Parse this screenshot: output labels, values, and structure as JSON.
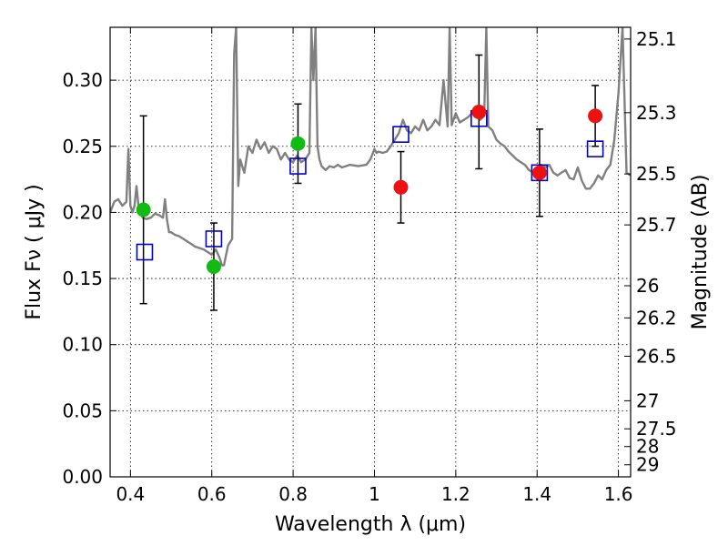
{
  "chart_data": {
    "type": "scatter",
    "xlabel": "Wavelength  λ (μm)",
    "ylabel": "Flux  Fν  ( μJy )",
    "y2label": "Magnitude (AB)",
    "xlim": [
      0.35,
      1.63
    ],
    "ylim": [
      0.0,
      0.34
    ],
    "grid": true,
    "x_ticks": [
      {
        "value": 0.4,
        "label": "0.4"
      },
      {
        "value": 0.6,
        "label": "0.6"
      },
      {
        "value": 0.8,
        "label": "0.8"
      },
      {
        "value": 1.0,
        "label": "1"
      },
      {
        "value": 1.2,
        "label": "1.2"
      },
      {
        "value": 1.4,
        "label": "1.4"
      },
      {
        "value": 1.6,
        "label": "1.6"
      }
    ],
    "y_ticks": [
      {
        "value": 0.0,
        "label": "0.00"
      },
      {
        "value": 0.05,
        "label": "0.05"
      },
      {
        "value": 0.1,
        "label": "0.10"
      },
      {
        "value": 0.15,
        "label": "0.15"
      },
      {
        "value": 0.2,
        "label": "0.20"
      },
      {
        "value": 0.25,
        "label": "0.25"
      },
      {
        "value": 0.3,
        "label": "0.30"
      }
    ],
    "y2_ticks": [
      {
        "value": 25.1,
        "label": "25.1"
      },
      {
        "value": 25.3,
        "label": "25.3"
      },
      {
        "value": 25.5,
        "label": "25.5"
      },
      {
        "value": 25.7,
        "label": "25.7"
      },
      {
        "value": 26.0,
        "label": "26"
      },
      {
        "value": 26.2,
        "label": "26.2"
      },
      {
        "value": 26.5,
        "label": "26.5"
      },
      {
        "value": 27.0,
        "label": "27"
      },
      {
        "value": 27.5,
        "label": "27.5"
      },
      {
        "value": 28.0,
        "label": "28"
      },
      {
        "value": 29.0,
        "label": "29"
      }
    ],
    "template_spectrum": {
      "color": "#808080",
      "x": [
        0.35,
        0.36,
        0.37,
        0.38,
        0.39,
        0.395,
        0.4,
        0.405,
        0.41,
        0.415,
        0.42,
        0.43,
        0.44,
        0.45,
        0.46,
        0.47,
        0.48,
        0.485,
        0.49,
        0.495,
        0.5,
        0.51,
        0.52,
        0.53,
        0.54,
        0.55,
        0.56,
        0.57,
        0.58,
        0.59,
        0.6,
        0.61,
        0.62,
        0.625,
        0.63,
        0.64,
        0.65,
        0.655,
        0.66,
        0.665,
        0.67,
        0.675,
        0.68,
        0.69,
        0.7,
        0.71,
        0.72,
        0.73,
        0.74,
        0.75,
        0.76,
        0.77,
        0.78,
        0.79,
        0.8,
        0.81,
        0.82,
        0.83,
        0.84,
        0.845,
        0.85,
        0.855,
        0.86,
        0.865,
        0.87,
        0.88,
        0.89,
        0.9,
        0.91,
        0.92,
        0.94,
        0.96,
        0.98,
        0.99,
        1.0,
        1.005,
        1.01,
        1.02,
        1.03,
        1.04,
        1.05,
        1.06,
        1.07,
        1.08,
        1.09,
        1.1,
        1.11,
        1.12,
        1.13,
        1.14,
        1.15,
        1.16,
        1.17,
        1.18,
        1.185,
        1.19,
        1.2,
        1.21,
        1.22,
        1.23,
        1.24,
        1.25,
        1.26,
        1.27,
        1.275,
        1.28,
        1.29,
        1.3,
        1.31,
        1.32,
        1.33,
        1.34,
        1.35,
        1.36,
        1.37,
        1.38,
        1.39,
        1.4,
        1.41,
        1.42,
        1.43,
        1.44,
        1.45,
        1.46,
        1.47,
        1.48,
        1.49,
        1.5,
        1.51,
        1.52,
        1.53,
        1.54,
        1.55,
        1.56,
        1.57,
        1.58,
        1.59,
        1.6,
        1.61,
        1.62,
        1.63
      ],
      "y": [
        0.2,
        0.208,
        0.21,
        0.205,
        0.208,
        0.248,
        0.205,
        0.2,
        0.205,
        0.22,
        0.204,
        0.196,
        0.195,
        0.196,
        0.199,
        0.198,
        0.196,
        0.21,
        0.194,
        0.185,
        0.185,
        0.183,
        0.182,
        0.18,
        0.178,
        0.176,
        0.174,
        0.173,
        0.172,
        0.17,
        0.168,
        0.172,
        0.165,
        0.16,
        0.16,
        0.175,
        0.18,
        0.32,
        0.34,
        0.22,
        0.24,
        0.235,
        0.23,
        0.25,
        0.245,
        0.255,
        0.248,
        0.253,
        0.245,
        0.25,
        0.248,
        0.24,
        0.245,
        0.24,
        0.238,
        0.243,
        0.238,
        0.24,
        0.245,
        0.34,
        0.3,
        0.34,
        0.25,
        0.24,
        0.235,
        0.232,
        0.235,
        0.234,
        0.236,
        0.234,
        0.236,
        0.235,
        0.236,
        0.24,
        0.248,
        0.245,
        0.246,
        0.245,
        0.246,
        0.25,
        0.255,
        0.26,
        0.27,
        0.262,
        0.26,
        0.265,
        0.262,
        0.27,
        0.262,
        0.265,
        0.27,
        0.266,
        0.3,
        0.265,
        0.34,
        0.266,
        0.275,
        0.268,
        0.27,
        0.272,
        0.275,
        0.274,
        0.27,
        0.273,
        0.34,
        0.265,
        0.262,
        0.255,
        0.252,
        0.25,
        0.246,
        0.243,
        0.24,
        0.238,
        0.236,
        0.232,
        0.23,
        0.228,
        0.236,
        0.234,
        0.236,
        0.23,
        0.228,
        0.23,
        0.232,
        0.226,
        0.225,
        0.234,
        0.224,
        0.218,
        0.218,
        0.222,
        0.228,
        0.225,
        0.232,
        0.236,
        0.255,
        0.29,
        0.34,
        0.23,
        0.228
      ]
    },
    "series": [
      {
        "marker": "circle",
        "color": "#11bb11",
        "x": [
          0.432,
          0.605,
          0.812
        ],
        "y": [
          0.202,
          0.159,
          0.252
        ],
        "yerr_low": [
          0.071,
          0.033,
          0.03
        ],
        "yerr_high": [
          0.071,
          0.033,
          0.03
        ]
      },
      {
        "marker": "circle",
        "color": "#ee1111",
        "x": [
          1.065,
          1.257,
          1.406,
          1.543
        ],
        "y": [
          0.219,
          0.276,
          0.23,
          0.273
        ],
        "yerr_low": [
          0.027,
          0.043,
          0.033,
          0.023
        ],
        "yerr_high": [
          0.027,
          0.043,
          0.033,
          0.023
        ]
      },
      {
        "marker": "open-square",
        "color": "#0000cc",
        "x": [
          0.435,
          0.605,
          0.812,
          1.065,
          1.257,
          1.406,
          1.543
        ],
        "y": [
          0.17,
          0.18,
          0.235,
          0.259,
          0.271,
          0.23,
          0.248
        ]
      }
    ]
  }
}
